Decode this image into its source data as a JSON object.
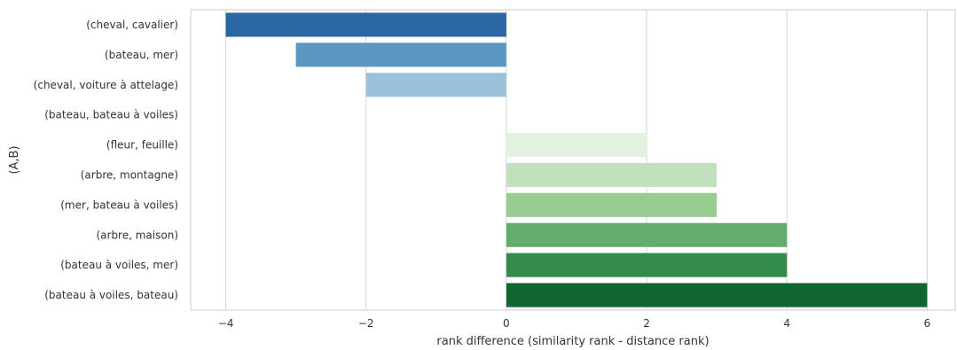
{
  "chart_data": {
    "type": "bar",
    "orientation": "horizontal",
    "title": "",
    "xlabel": "rank difference (similarity rank - distance rank)",
    "ylabel": "(A,B)",
    "xlim": [
      -4.5,
      6.4
    ],
    "xticks": [
      -4,
      -2,
      0,
      2,
      4,
      6
    ],
    "xtick_labels": [
      "−4",
      "−2",
      "0",
      "2",
      "4",
      "6"
    ],
    "grid": "vertical",
    "categories": [
      "(cheval, cavalier)",
      "(bateau, mer)",
      "(cheval, voiture à attelage)",
      "(bateau, bateau à voiles)",
      "(fleur, feuille)",
      "(arbre, montagne)",
      "(mer, bateau à voiles)",
      "(arbre, maison)",
      "(bateau à voiles, mer)",
      "(bateau à voiles, bateau)"
    ],
    "values": [
      -4,
      -3,
      -2,
      0,
      2,
      3,
      3,
      4,
      4,
      6
    ],
    "colors": [
      "#2a66a3",
      "#5a97c2",
      "#9ac3d9",
      "#ffffff",
      "#e3f1df",
      "#c1e0bc",
      "#98cc91",
      "#62ad6d",
      "#348c4c",
      "#0f6631"
    ]
  }
}
